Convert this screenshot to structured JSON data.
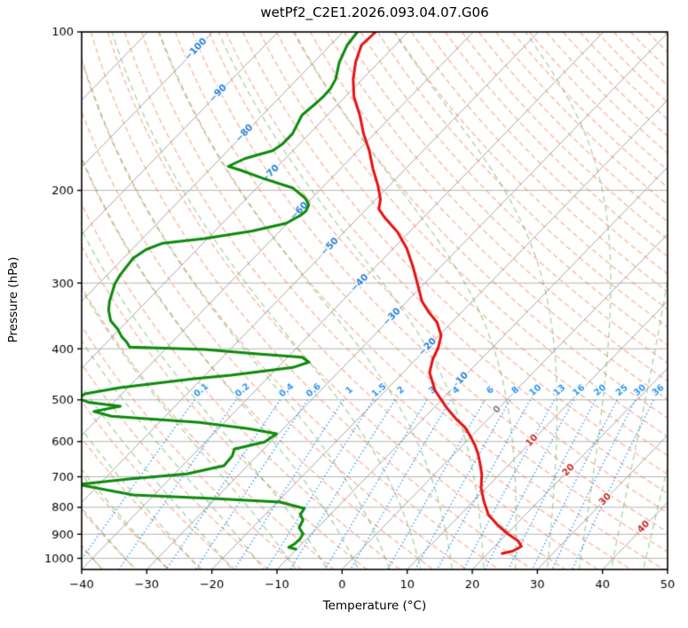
{
  "title": "wetPf2_C2E1.2026.093.04.07.G06",
  "axes": {
    "xlabel": "Temperature (°C)",
    "ylabel": "Pressure (hPa)",
    "x_ticks": [
      -40,
      -30,
      -20,
      -10,
      0,
      10,
      20,
      30,
      40,
      50
    ],
    "y_ticks": [
      100,
      200,
      300,
      400,
      500,
      600,
      700,
      800,
      900,
      1000
    ],
    "x_range": [
      -40,
      50
    ],
    "p_range": [
      100,
      1050
    ]
  },
  "chart_data": {
    "type": "line",
    "variant": "skew-t-log-p",
    "title": "wetPf2_C2E1.2026.093.04.07.G06",
    "xlabel": "Temperature (°C)",
    "ylabel": "Pressure (hPa)",
    "x_axis": {
      "min": -40,
      "max": 50,
      "ticks": [
        -40,
        -30,
        -20,
        -10,
        0,
        10,
        20,
        30,
        40,
        50
      ]
    },
    "y_axis": {
      "min": 100,
      "max": 1050,
      "scale": "log",
      "ticks": [
        100,
        200,
        300,
        400,
        500,
        600,
        700,
        800,
        900,
        1000
      ]
    },
    "skew_deg": 45,
    "series": [
      {
        "name": "temperature",
        "color": "#e41212",
        "width": 3,
        "points": [
          [
            100,
            -75
          ],
          [
            106,
            -75.2
          ],
          [
            114,
            -73.6
          ],
          [
            123,
            -71.4
          ],
          [
            133,
            -68.6
          ],
          [
            144,
            -65
          ],
          [
            156,
            -61.7
          ],
          [
            168,
            -58.3
          ],
          [
            182,
            -55
          ],
          [
            196,
            -51.7
          ],
          [
            208,
            -49.3
          ],
          [
            217,
            -48.1
          ],
          [
            225,
            -46
          ],
          [
            240,
            -41.8
          ],
          [
            258,
            -37.9
          ],
          [
            279,
            -34.3
          ],
          [
            301,
            -31
          ],
          [
            325,
            -27.7
          ],
          [
            341,
            -25
          ],
          [
            356,
            -22.3
          ],
          [
            377,
            -19.7
          ],
          [
            398,
            -18.3
          ],
          [
            419,
            -17.4
          ],
          [
            444,
            -15.9
          ],
          [
            480,
            -12.4
          ],
          [
            518,
            -8
          ],
          [
            543,
            -5
          ],
          [
            564,
            -2.3
          ],
          [
            587,
            -0.1
          ],
          [
            610,
            1.9
          ],
          [
            634,
            3.7
          ],
          [
            659,
            5.3
          ],
          [
            693,
            7.3
          ],
          [
            735,
            9.2
          ],
          [
            779,
            11.6
          ],
          [
            826,
            14.3
          ],
          [
            865,
            17.3
          ],
          [
            899,
            20.2
          ],
          [
            927,
            22.8
          ],
          [
            949,
            24.1
          ],
          [
            969,
            23.5
          ],
          [
            979,
            22.2
          ]
        ]
      },
      {
        "name": "dewpoint",
        "color": "#0b8a0b",
        "width": 3,
        "points": [
          [
            100,
            -77.8
          ],
          [
            106,
            -77.4
          ],
          [
            114,
            -76.1
          ],
          [
            123,
            -74.1
          ],
          [
            128,
            -73.5
          ],
          [
            132,
            -73.4
          ],
          [
            136,
            -73.5
          ],
          [
            144,
            -73.9
          ],
          [
            156,
            -72.6
          ],
          [
            163,
            -72.6
          ],
          [
            168,
            -73.1
          ],
          [
            174,
            -76.2
          ],
          [
            180,
            -77.6
          ],
          [
            183,
            -75.2
          ],
          [
            190,
            -70.3
          ],
          [
            198,
            -64.4
          ],
          [
            207,
            -61
          ],
          [
            213,
            -59.5
          ],
          [
            219,
            -59
          ],
          [
            223,
            -59.2
          ],
          [
            231,
            -60.2
          ],
          [
            239,
            -64.3
          ],
          [
            247,
            -70.5
          ],
          [
            252,
            -76.2
          ],
          [
            259,
            -77.8
          ],
          [
            269,
            -78.5
          ],
          [
            290,
            -78
          ],
          [
            301,
            -77.5
          ],
          [
            325,
            -75.7
          ],
          [
            338,
            -74.5
          ],
          [
            354,
            -72.6
          ],
          [
            367,
            -70.3
          ],
          [
            379,
            -68.6
          ],
          [
            389,
            -66.9
          ],
          [
            397,
            -65.8
          ],
          [
            401,
            -53.9
          ],
          [
            409,
            -45.1
          ],
          [
            415,
            -37.8
          ],
          [
            424,
            -36
          ],
          [
            434,
            -37.7
          ],
          [
            449,
            -46
          ],
          [
            456,
            -51.2
          ],
          [
            474,
            -61.2
          ],
          [
            487,
            -65.7
          ],
          [
            497,
            -66
          ],
          [
            506,
            -63.7
          ],
          [
            514,
            -58.4
          ],
          [
            526,
            -61.7
          ],
          [
            537,
            -58.3
          ],
          [
            552,
            -43.8
          ],
          [
            567,
            -35.4
          ],
          [
            580,
            -30.3
          ],
          [
            601,
            -30.9
          ],
          [
            620,
            -34.5
          ],
          [
            639,
            -33.8
          ],
          [
            667,
            -33.6
          ],
          [
            691,
            -38.1
          ],
          [
            707,
            -46.2
          ],
          [
            724,
            -53.2
          ],
          [
            758,
            -43.2
          ],
          [
            770,
            -30.4
          ],
          [
            782,
            -19.6
          ],
          [
            804,
            -14.9
          ],
          [
            826,
            -14.6
          ],
          [
            845,
            -13.4
          ],
          [
            875,
            -12.8
          ],
          [
            899,
            -11.3
          ],
          [
            920,
            -11
          ],
          [
            938,
            -11.1
          ],
          [
            953,
            -11.5
          ],
          [
            961,
            -10.1
          ]
        ]
      }
    ],
    "background": {
      "pressure_lines": {
        "values": [
          100,
          200,
          300,
          400,
          500,
          600,
          700,
          800,
          900,
          1000
        ],
        "color": "#b3b3b3"
      },
      "isotherms": {
        "min": -120,
        "max": 50,
        "step": 10,
        "color": "#a6a6a6"
      },
      "isotherm_labels": [
        {
          "t": -100,
          "p": 108
        },
        {
          "t": -90,
          "p": 131
        },
        {
          "t": -80,
          "p": 156
        },
        {
          "t": -70,
          "p": 186
        },
        {
          "t": -60,
          "p": 219
        },
        {
          "t": -50,
          "p": 256
        },
        {
          "t": -40,
          "p": 300
        },
        {
          "t": -30,
          "p": 348
        },
        {
          "t": -20,
          "p": 397
        },
        {
          "t": -10,
          "p": 461
        },
        {
          "t": 0,
          "p": 522
        },
        {
          "t": 10,
          "p": 598
        },
        {
          "t": 20,
          "p": 680
        },
        {
          "t": 30,
          "p": 773
        },
        {
          "t": 40,
          "p": 872
        }
      ],
      "isotherm_label_colors": {
        "negative": "#2980d9",
        "zero": "#808080",
        "positive": "#cc2a2a"
      },
      "dry_adiabats": {
        "min": -50,
        "max": 200,
        "step": 5,
        "color": "rgba(250,120,80,0.55)"
      },
      "moist_adiabats": {
        "min": -60,
        "max": 50,
        "step": 5,
        "color": "rgba(80,170,80,0.5)"
      },
      "mixing_ratio_lines": {
        "values": [
          0.1,
          0.2,
          0.4,
          0.6,
          1,
          1.5,
          2,
          3,
          4,
          6,
          8,
          10,
          13,
          16,
          20,
          25,
          30,
          36
        ],
        "color": "#2e97f5",
        "top_pressure": 500,
        "bottom_pressure": 1050,
        "label_pressure": 480
      }
    }
  }
}
